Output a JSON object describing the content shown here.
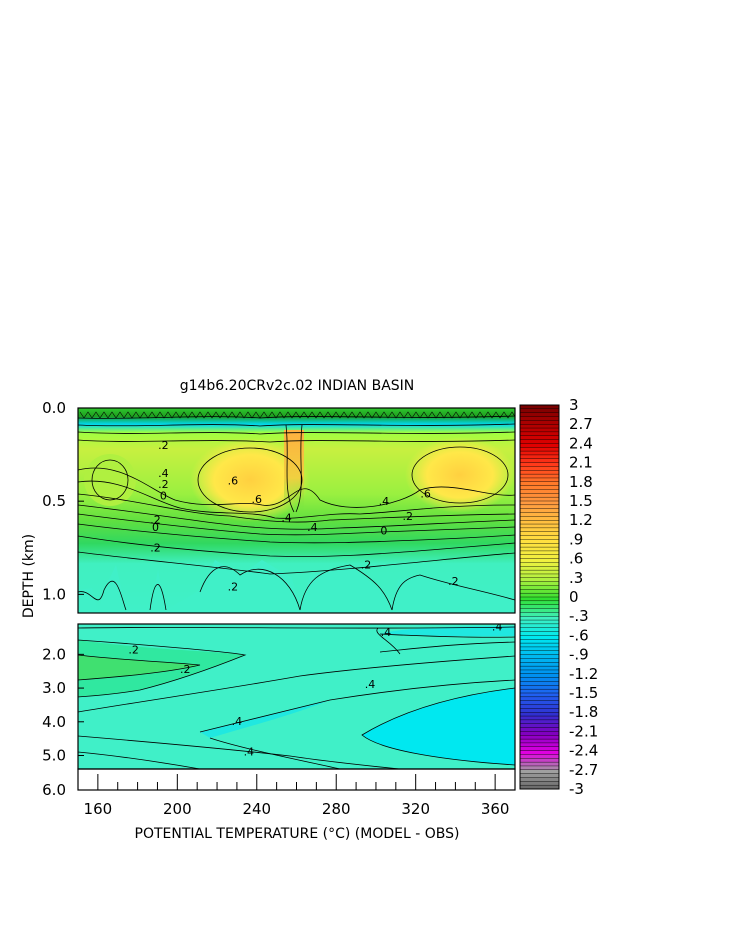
{
  "chart_data": {
    "type": "heatmap",
    "title": "g14b6.20CRv2c.02 INDIAN BASIN",
    "xlabel": "POTENTIAL TEMPERATURE (°C) (MODEL - OBS)",
    "ylabel": "DEPTH (km)",
    "xlim": [
      150,
      370
    ],
    "x_ticks": [
      160,
      200,
      240,
      280,
      320,
      360
    ],
    "x_tick_labels": [
      "160",
      "200",
      "240",
      "280",
      "320",
      "360"
    ],
    "y_tick_labels_upper": [
      "0.0",
      "0.5",
      "1.0"
    ],
    "y_ticks_upper": [
      0.0,
      0.5,
      1.0
    ],
    "ylim_upper": [
      0.0,
      1.1
    ],
    "y_tick_labels_lower": [
      "2.0",
      "3.0",
      "4.0",
      "5.0",
      "6.0"
    ],
    "y_ticks_lower": [
      2.0,
      3.0,
      4.0,
      5.0,
      6.0
    ],
    "ylim_lower": [
      1.1,
      5.4
    ],
    "colorbar": {
      "labels": [
        "3",
        "2.7",
        "2.4",
        "2.1",
        "1.8",
        "1.5",
        "1.2",
        ".9",
        ".6",
        ".3",
        "0",
        "-.3",
        "-.6",
        "-.9",
        "-1.2",
        "-1.5",
        "-1.8",
        "-2.1",
        "-2.4",
        "-2.7",
        "-3"
      ],
      "values": [
        3,
        2.7,
        2.4,
        2.1,
        1.8,
        1.5,
        1.2,
        0.9,
        0.6,
        0.3,
        0,
        -0.3,
        -0.6,
        -0.9,
        -1.2,
        -1.5,
        -1.8,
        -2.1,
        -2.4,
        -2.7,
        -3
      ],
      "colors": [
        "#7a0000",
        "#b30000",
        "#e00000",
        "#ff3a1a",
        "#ff7a2a",
        "#ff9a40",
        "#ffc040",
        "#ffe040",
        "#f0f040",
        "#b0f040",
        "#30e030",
        "#40f0c0",
        "#00e8f0",
        "#00b8f0",
        "#0090f0",
        "#2060f0",
        "#3030d0",
        "#8000c0",
        "#e000e0",
        "#a0a0a0",
        "#606060"
      ]
    },
    "contour_labels_upper": [
      {
        "text": ".2",
        "x": 193,
        "y": 0.22
      },
      {
        "text": ".4",
        "x": 193,
        "y": 0.37
      },
      {
        "text": ".2",
        "x": 193,
        "y": 0.43
      },
      {
        "text": "0",
        "x": 193,
        "y": 0.49
      },
      {
        "text": ".6",
        "x": 228,
        "y": 0.41
      },
      {
        "text": ".6",
        "x": 240,
        "y": 0.51
      },
      {
        "text": ".4",
        "x": 255,
        "y": 0.61
      },
      {
        "text": ".4",
        "x": 268,
        "y": 0.66
      },
      {
        "text": ".2",
        "x": 189,
        "y": 0.62
      },
      {
        "text": "0",
        "x": 189,
        "y": 0.66
      },
      {
        "text": ".2",
        "x": 189,
        "y": 0.77
      },
      {
        "text": ".2",
        "x": 228,
        "y": 0.98
      },
      {
        "text": ".4",
        "x": 304,
        "y": 0.52
      },
      {
        "text": ".2",
        "x": 316,
        "y": 0.6
      },
      {
        "text": "0",
        "x": 304,
        "y": 0.68
      },
      {
        "text": ".2",
        "x": 295,
        "y": 0.86
      },
      {
        "text": ".6",
        "x": 325,
        "y": 0.48
      },
      {
        "text": ".2",
        "x": 339,
        "y": 0.95
      }
    ],
    "contour_labels_lower": [
      {
        "text": ".2",
        "x": 178,
        "y": 1.98
      },
      {
        "text": ".2",
        "x": 204,
        "y": 2.55
      },
      {
        "text": ".4",
        "x": 230,
        "y": 4.1
      },
      {
        "text": ".4",
        "x": 236,
        "y": 5.0
      },
      {
        "text": ".4",
        "x": 297,
        "y": 3.0
      },
      {
        "text": ".4",
        "x": 305,
        "y": 1.45
      },
      {
        "text": ".4",
        "x": 361,
        "y": 1.3
      }
    ]
  }
}
